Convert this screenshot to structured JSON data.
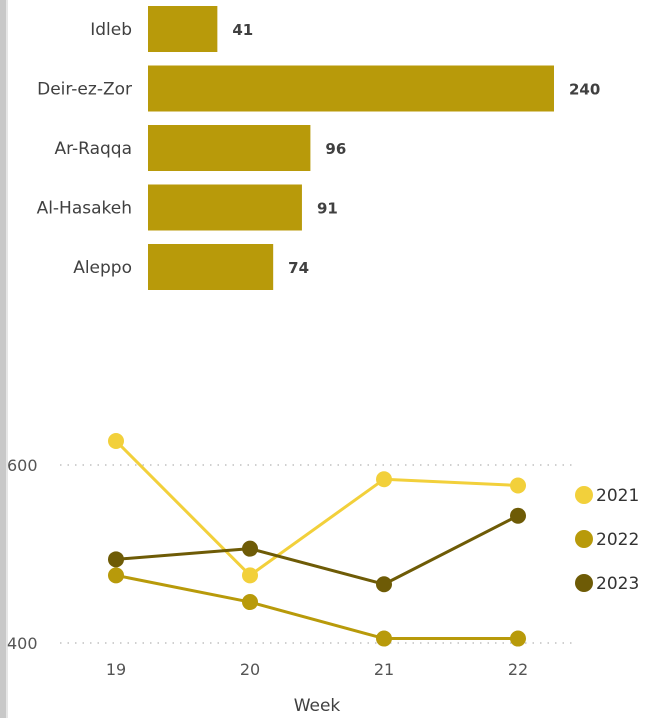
{
  "colors": {
    "bar": "#b89a0a",
    "gridline": "#b5b5b5",
    "edge": "#c8c8c8"
  },
  "chart_data": [
    {
      "type": "bar",
      "orientation": "horizontal",
      "categories": [
        "Idleb",
        "Deir-ez-Zor",
        "Ar-Raqqa",
        "Al-Hasakeh",
        "Aleppo"
      ],
      "values": [
        41,
        240,
        96,
        91,
        74
      ],
      "value_labels": [
        "41",
        "240",
        "96",
        "91",
        "74"
      ],
      "xlim": [
        0,
        240
      ]
    },
    {
      "type": "line",
      "x": [
        19,
        20,
        21,
        22
      ],
      "x_tick_labels": [
        "19",
        "20",
        "21",
        "22"
      ],
      "xlabel": "Week",
      "ylabel": "",
      "ylim": [
        400,
        600
      ],
      "y_tick_labels": [
        "400",
        "600"
      ],
      "grid": "horizontal dotted",
      "legend_position": "right",
      "series": [
        {
          "name": "2021",
          "color": "#f2d03b",
          "values": [
            627,
            476,
            584,
            577
          ]
        },
        {
          "name": "2022",
          "color": "#b89a0a",
          "values": [
            476,
            446,
            405,
            405
          ]
        },
        {
          "name": "2023",
          "color": "#6e5b06",
          "values": [
            494,
            506,
            466,
            543
          ]
        }
      ]
    }
  ]
}
